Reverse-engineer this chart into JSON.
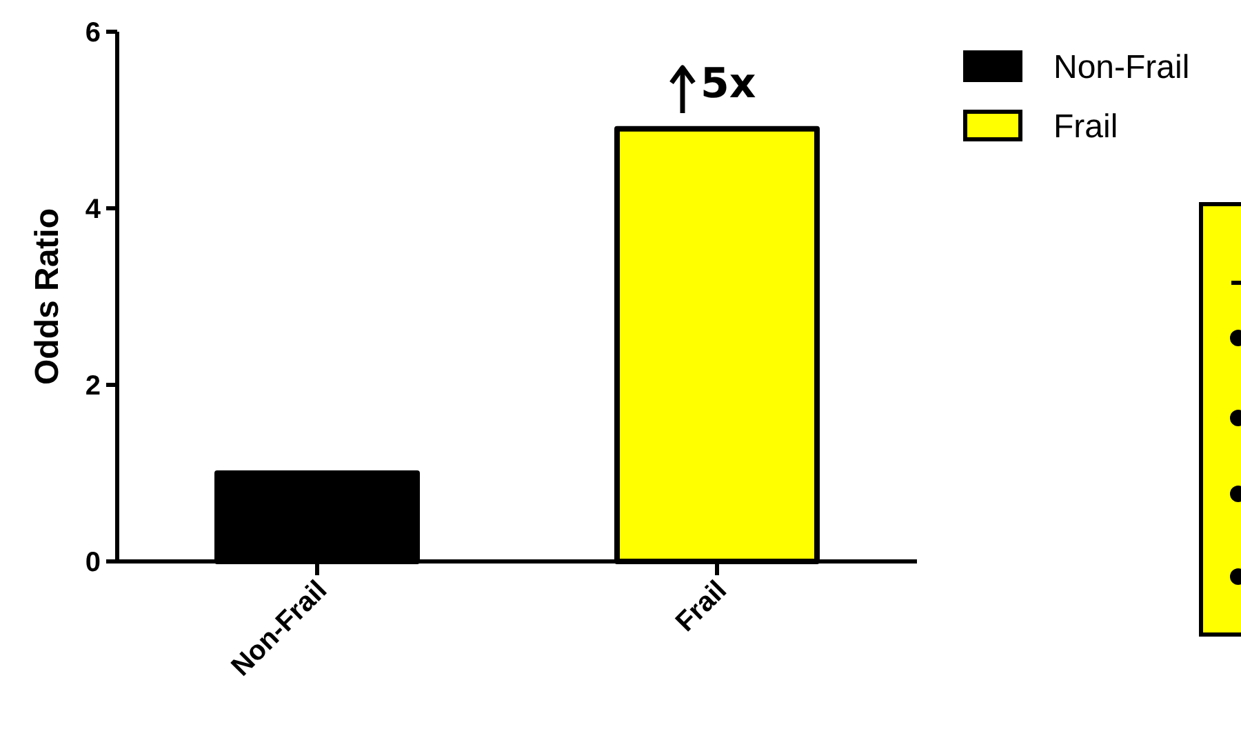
{
  "chart_data": {
    "type": "bar",
    "ylabel": "Odds Ratio",
    "categories": [
      "Non-Frail",
      "Frail"
    ],
    "series": [
      {
        "name": "Non-Frail",
        "color": "#000000",
        "values": [
          1.0,
          null
        ]
      },
      {
        "name": "Frail",
        "color": "#ffff00",
        "values": [
          null,
          4.9
        ]
      }
    ],
    "ylim": [
      0,
      6
    ],
    "yticks": [
      0,
      2,
      4,
      6
    ],
    "legend": "top right",
    "annotations": [
      "5x"
    ]
  }
}
